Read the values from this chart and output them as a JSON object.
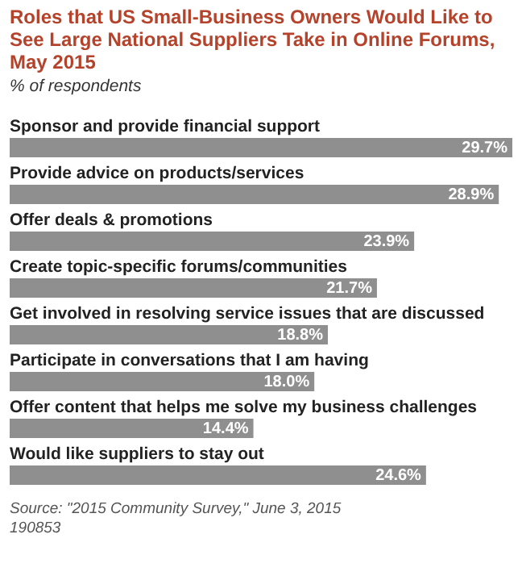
{
  "chart_data": {
    "type": "bar",
    "orientation": "horizontal",
    "title": "Roles that US Small-Business Owners Would Like to See Large National Suppliers Take in Online Forums, May 2015",
    "subtitle": "% of respondents",
    "categories": [
      "Sponsor and provide financial support",
      "Provide advice on products/services",
      "Offer deals & promotions",
      "Create topic-specific forums/communities",
      "Get involved in resolving service issues that are discussed",
      "Participate in conversations that I am having",
      "Offer content that helps me solve my business challenges",
      "Would like suppliers to stay out"
    ],
    "values": [
      29.7,
      28.9,
      23.9,
      21.7,
      18.8,
      18.0,
      14.4,
      24.6
    ],
    "color": "#8f8f8f",
    "value_labels": [
      "29.7%",
      "28.9%",
      "23.9%",
      "21.7%",
      "18.8%",
      "18.0%",
      "14.4%",
      "24.6%"
    ],
    "annotations": [
      "Source: \"2015 Community Survey,\" June 3, 2015",
      "190853"
    ]
  }
}
